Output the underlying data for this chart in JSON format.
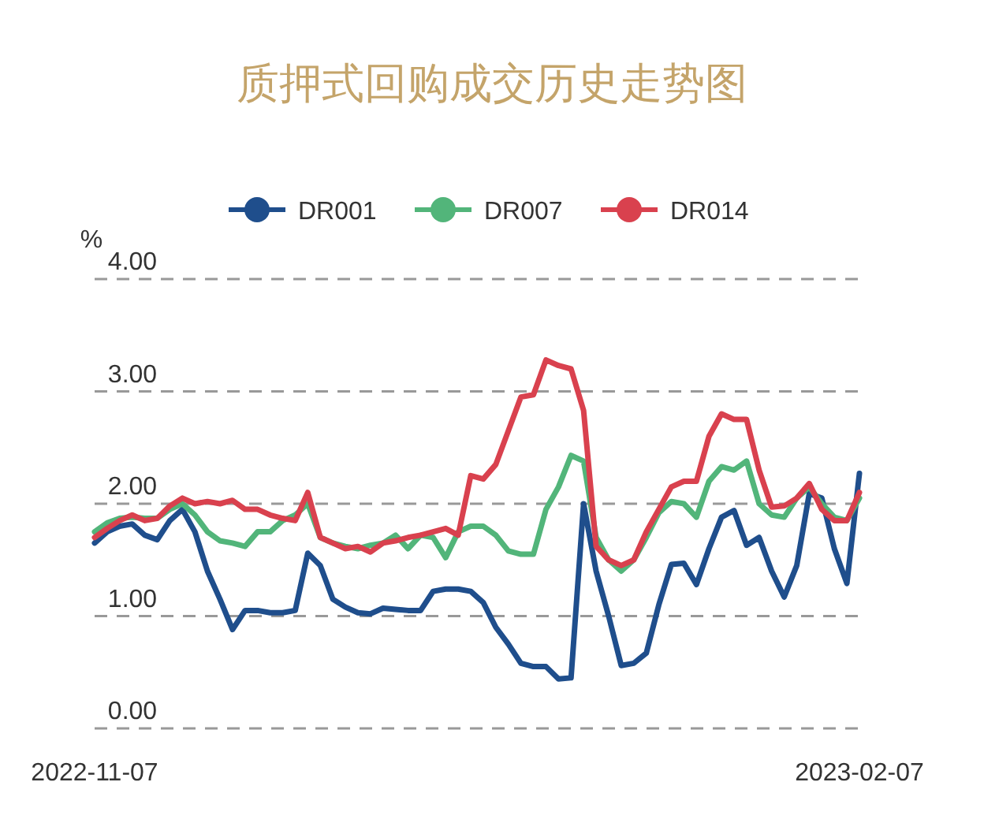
{
  "chart_data": {
    "type": "line",
    "title": "质押式回购成交历史走势图",
    "ylabel": "%",
    "categories": [
      "2022-11-07",
      null,
      null,
      null,
      null,
      null,
      null,
      null,
      null,
      null,
      null,
      null,
      null,
      null,
      null,
      null,
      null,
      null,
      null,
      null,
      null,
      null,
      null,
      null,
      null,
      null,
      null,
      null,
      null,
      null,
      null,
      null,
      null,
      null,
      null,
      null,
      null,
      null,
      null,
      null,
      null,
      null,
      null,
      null,
      null,
      null,
      null,
      null,
      null,
      null,
      null,
      null,
      null,
      null,
      null,
      null,
      null,
      null,
      null,
      null,
      null,
      "2023-02-07"
    ],
    "series": [
      {
        "name": "DR001",
        "color": "#1f4e8c",
        "values": [
          1.65,
          1.75,
          1.8,
          1.82,
          1.72,
          1.68,
          1.85,
          1.95,
          1.75,
          1.4,
          1.15,
          0.88,
          1.05,
          1.05,
          1.03,
          1.03,
          1.05,
          1.56,
          1.45,
          1.15,
          1.08,
          1.03,
          1.02,
          1.07,
          1.06,
          1.05,
          1.05,
          1.22,
          1.24,
          1.24,
          1.22,
          1.12,
          0.9,
          0.75,
          0.58,
          0.55,
          0.55,
          0.44,
          0.45,
          2.0,
          1.4,
          1.0,
          0.56,
          0.58,
          0.67,
          1.1,
          1.46,
          1.47,
          1.28,
          1.6,
          1.88,
          1.94,
          1.63,
          1.7,
          1.4,
          1.17,
          1.45,
          2.09,
          2.05,
          1.6,
          1.29,
          2.27
        ]
      },
      {
        "name": "DR007",
        "color": "#52b57a",
        "values": [
          1.75,
          1.83,
          1.87,
          1.88,
          1.87,
          1.87,
          1.95,
          2.0,
          1.9,
          1.75,
          1.67,
          1.65,
          1.62,
          1.75,
          1.75,
          1.85,
          1.9,
          2.0,
          1.7,
          1.65,
          1.62,
          1.6,
          1.63,
          1.65,
          1.72,
          1.6,
          1.72,
          1.7,
          1.52,
          1.75,
          1.8,
          1.8,
          1.72,
          1.58,
          1.55,
          1.55,
          1.95,
          2.15,
          2.43,
          2.38,
          1.7,
          1.5,
          1.4,
          1.5,
          1.7,
          1.92,
          2.02,
          2.0,
          1.88,
          2.2,
          2.33,
          2.3,
          2.38,
          2.0,
          1.9,
          1.88,
          2.05,
          2.15,
          2.0,
          1.88,
          1.85,
          2.05
        ]
      },
      {
        "name": "DR014",
        "color": "#d9414e",
        "values": [
          1.7,
          1.78,
          1.85,
          1.9,
          1.85,
          1.87,
          1.98,
          2.05,
          2.0,
          2.02,
          2.0,
          2.03,
          1.95,
          1.95,
          1.9,
          1.87,
          1.85,
          2.1,
          1.7,
          1.65,
          1.6,
          1.62,
          1.57,
          1.65,
          1.67,
          1.7,
          1.72,
          1.75,
          1.78,
          1.72,
          2.25,
          2.22,
          2.35,
          2.65,
          2.95,
          2.97,
          3.28,
          3.23,
          3.2,
          2.83,
          1.62,
          1.5,
          1.45,
          1.5,
          1.75,
          1.95,
          2.15,
          2.2,
          2.2,
          2.6,
          2.8,
          2.75,
          2.75,
          2.3,
          1.97,
          1.98,
          2.05,
          2.18,
          1.95,
          1.85,
          1.85,
          2.1
        ]
      }
    ],
    "ylim": [
      0,
      4
    ],
    "yticks": [
      {
        "value": 0,
        "label": "0.00"
      },
      {
        "value": 1,
        "label": "1.00"
      },
      {
        "value": 2,
        "label": "2.00"
      },
      {
        "value": 3,
        "label": "3.00"
      },
      {
        "value": 4,
        "label": "4.00"
      }
    ],
    "grid": "y",
    "legend": "top",
    "marker": "none",
    "line_style": "solid"
  }
}
